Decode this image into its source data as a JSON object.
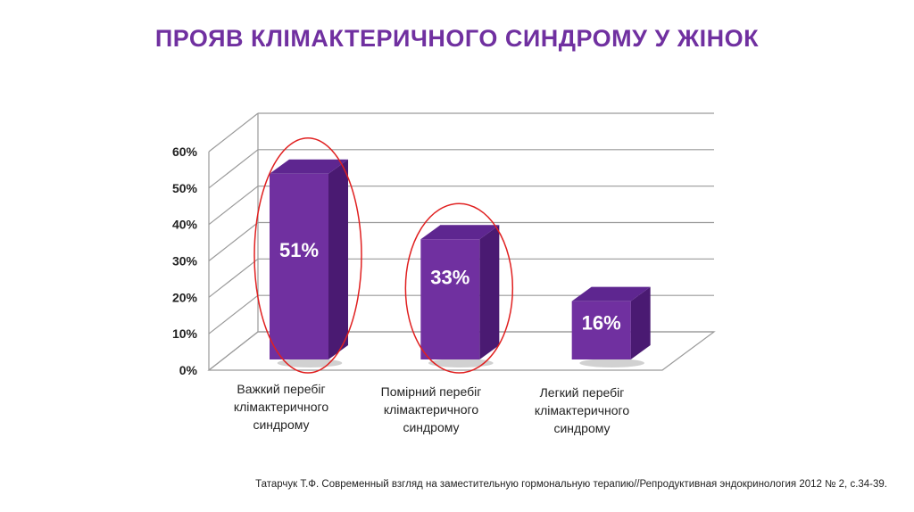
{
  "title": "ПРОЯВ КЛІМАКТЕРИЧНОГО СИНДРОМУ У ЖІНОК",
  "source": "Татарчук Т.Ф. Современный взгляд на заместительную гормональную терапию//Репродуктивная эндокринология 2012 № 2, с.34-39.",
  "chart_data": {
    "type": "bar",
    "categories": [
      "Важкий перебіг клімактеричного синдрому",
      "Помірний перебіг клімактеричного синдрому",
      "Легкий перебіг клімактеричного синдрому"
    ],
    "values": [
      51,
      33,
      16
    ],
    "data_labels": [
      "51%",
      "33%",
      "16%"
    ],
    "ylim": [
      0,
      60
    ],
    "yticks": [
      "0%",
      "10%",
      "20%",
      "30%",
      "40%",
      "50%",
      "60%"
    ],
    "grid": true,
    "style": "3d",
    "bar_color": "#7030a0",
    "highlight_color": "#e02020",
    "highlighted_categories": [
      0,
      1
    ],
    "legend": "none"
  }
}
